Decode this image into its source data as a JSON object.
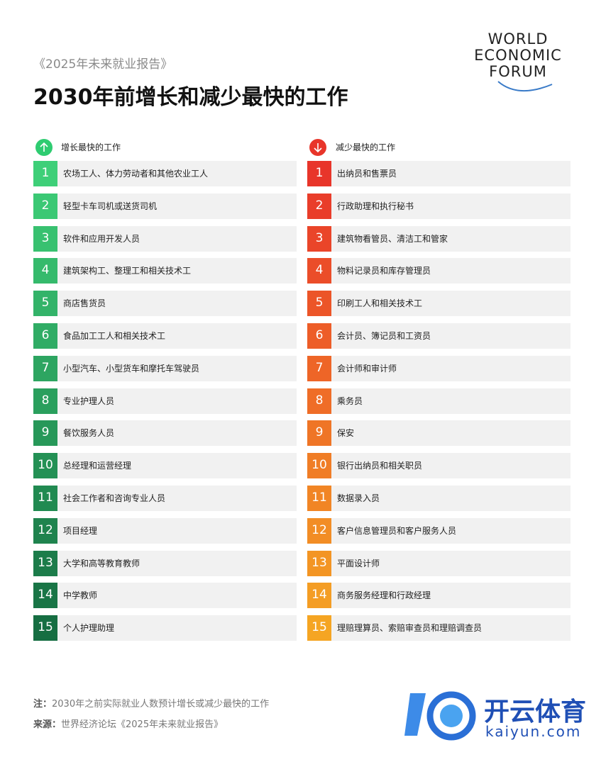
{
  "header": {
    "subtitle": "《2025年未来就业报告》",
    "title": "2030年前增长和减少最快的工作"
  },
  "logo": {
    "lines": [
      "WORLD",
      "ECONOMIC",
      "FORUM"
    ]
  },
  "columns": [
    {
      "heading": "增长最快的工作",
      "rows": [
        {
          "rank": 1,
          "label": "农场工人、体力劳动者和其他农业工人"
        },
        {
          "rank": 2,
          "label": "轻型卡车司机或送货司机"
        },
        {
          "rank": 3,
          "label": "软件和应用开发人员"
        },
        {
          "rank": 4,
          "label": "建筑架构工、整理工和相关技术工"
        },
        {
          "rank": 5,
          "label": "商店售货员"
        },
        {
          "rank": 6,
          "label": "食品加工工人和相关技术工"
        },
        {
          "rank": 7,
          "label": "小型汽车、小型货车和摩托车驾驶员"
        },
        {
          "rank": 8,
          "label": "专业护理人员"
        },
        {
          "rank": 9,
          "label": "餐饮服务人员"
        },
        {
          "rank": 10,
          "label": "总经理和运营经理"
        },
        {
          "rank": 11,
          "label": "社会工作者和咨询专业人员"
        },
        {
          "rank": 12,
          "label": "项目经理"
        },
        {
          "rank": 13,
          "label": "大学和高等教育教师"
        },
        {
          "rank": 14,
          "label": "中学教师"
        },
        {
          "rank": 15,
          "label": "个人护理助理"
        }
      ]
    },
    {
      "heading": "减少最快的工作",
      "rows": [
        {
          "rank": 1,
          "label": "出纳员和售票员"
        },
        {
          "rank": 2,
          "label": "行政助理和执行秘书"
        },
        {
          "rank": 3,
          "label": "建筑物看管员、清洁工和管家"
        },
        {
          "rank": 4,
          "label": "物料记录员和库存管理员"
        },
        {
          "rank": 5,
          "label": "印刷工人和相关技术工"
        },
        {
          "rank": 6,
          "label": "会计员、簿记员和工资员"
        },
        {
          "rank": 7,
          "label": "会计师和审计师"
        },
        {
          "rank": 8,
          "label": "乘务员"
        },
        {
          "rank": 9,
          "label": "保安"
        },
        {
          "rank": 10,
          "label": "银行出纳员和相关职员"
        },
        {
          "rank": 11,
          "label": "数据录入员"
        },
        {
          "rank": 12,
          "label": "客户信息管理员和客户服务人员"
        },
        {
          "rank": 13,
          "label": "平面设计师"
        },
        {
          "rank": 14,
          "label": "商务服务经理和行政经理"
        },
        {
          "rank": 15,
          "label": "理赔理算员、索赔审查员和理赔调查员"
        }
      ]
    }
  ],
  "footer": {
    "note": {
      "label": "注：",
      "text": "2030年之前实际就业人数预计增长或减少最快的工作"
    },
    "source": {
      "label": "来源：",
      "text": "世界经济论坛《2025年未来就业报告》"
    }
  },
  "watermark": {
    "brand": "开云体育",
    "url": "kaiyun.com"
  }
}
